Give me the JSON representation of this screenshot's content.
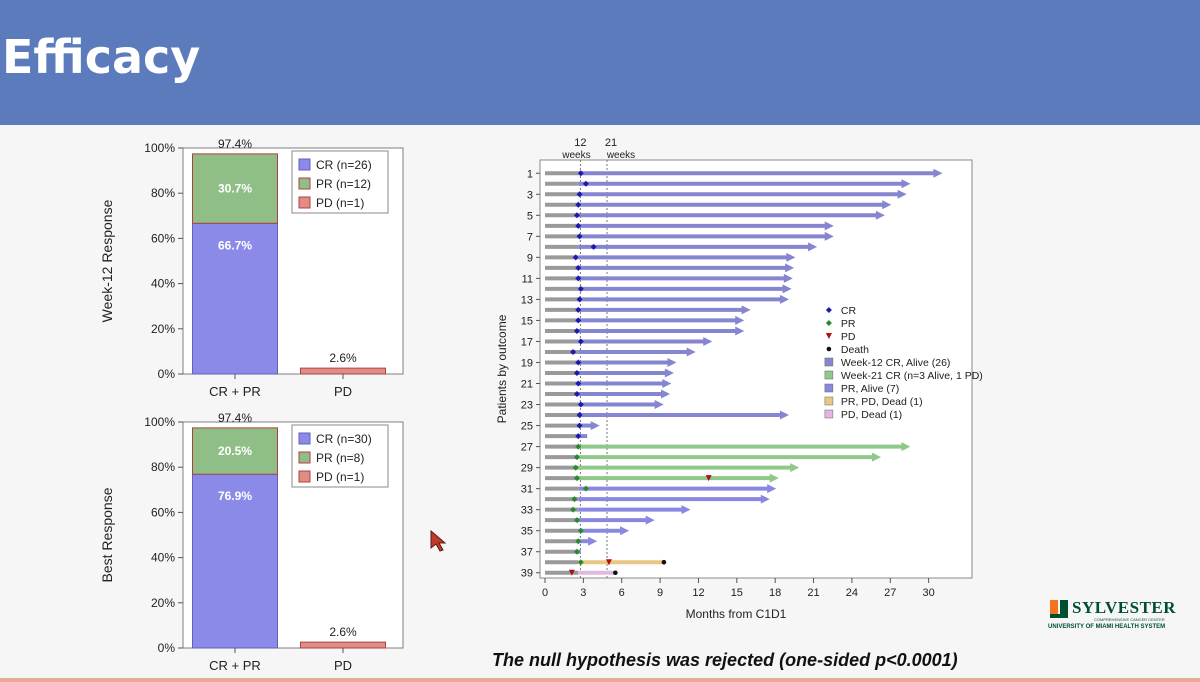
{
  "header": {
    "title": "Efficacy"
  },
  "footnote": "The null hypothesis was rejected (one-sided p<0.0001)",
  "logo": {
    "name": "SYLVESTER",
    "sub1": "COMPREHENSIVE CANCER CENTER",
    "sub2": "UNIVERSITY OF MIAMI HEALTH SYSTEM"
  },
  "colors": {
    "header": "#5c7bbd",
    "cr": "#8b8ae8",
    "pr": "#8fbf87",
    "pd": "#e08d88",
    "week12": "#8585d0",
    "week21": "#8ec98a",
    "pr_alive": "#8888e0",
    "pr_pd_dead": "#e8c684",
    "pd_dead": "#e0b8e0",
    "lead": "#9a9a9a"
  },
  "chart_data": [
    {
      "type": "bar",
      "ylabel": "Week-12 Response",
      "categories": [
        "CR + PR",
        "PD"
      ],
      "ylim": [
        0,
        100
      ],
      "yticks": [
        "0%",
        "20%",
        "40%",
        "60%",
        "80%",
        "100%"
      ],
      "series": [
        {
          "name": "CR (n=26)",
          "values": [
            66.7,
            0
          ]
        },
        {
          "name": "PR (n=12)",
          "values": [
            30.7,
            0
          ]
        },
        {
          "name": "PD (n=1)",
          "values": [
            0,
            2.6
          ]
        }
      ],
      "segment_labels": [
        "66.7%",
        "30.7%"
      ],
      "total_labels": [
        "97.4%",
        "2.6%"
      ],
      "legend_position": "top-right"
    },
    {
      "type": "bar",
      "ylabel": "Best Response",
      "categories": [
        "CR + PR",
        "PD"
      ],
      "ylim": [
        0,
        100
      ],
      "yticks": [
        "0%",
        "20%",
        "40%",
        "60%",
        "80%",
        "100%"
      ],
      "series": [
        {
          "name": "CR (n=30)",
          "values": [
            76.9,
            0
          ]
        },
        {
          "name": "PR (n=8)",
          "values": [
            20.5,
            0
          ]
        },
        {
          "name": "PD (n=1)",
          "values": [
            0,
            2.6
          ]
        }
      ],
      "segment_labels": [
        "76.9%",
        "20.5%"
      ],
      "total_labels": [
        "97.4%",
        "2.6%"
      ],
      "legend_position": "top-right"
    },
    {
      "type": "swimmer",
      "xlabel": "Months from C1D1",
      "ylabel": "Patients by outcome",
      "xlim": [
        0,
        33
      ],
      "xticks": [
        0,
        3,
        6,
        9,
        12,
        15,
        18,
        21,
        24,
        27,
        30
      ],
      "ytick_labels": [
        "1",
        "3",
        "5",
        "7",
        "9",
        "11",
        "13",
        "15",
        "17",
        "19",
        "21",
        "23",
        "25",
        "27",
        "29",
        "31",
        "33",
        "35",
        "37",
        "39"
      ],
      "reference_lines": [
        {
          "x": 2.77,
          "label": "12",
          "sub": "weeks"
        },
        {
          "x": 4.85,
          "label": "21",
          "sub": "weeks"
        }
      ],
      "legend": [
        {
          "label": "CR",
          "kind": "marker",
          "key": "CR"
        },
        {
          "label": "PR",
          "kind": "marker",
          "key": "PR"
        },
        {
          "label": "PD",
          "kind": "marker",
          "key": "PD"
        },
        {
          "label": "Death",
          "kind": "marker",
          "key": "Death"
        },
        {
          "label": "Week-12 CR, Alive (26)",
          "kind": "bar",
          "key": "week12"
        },
        {
          "label": "Week-21 CR (n=3 Alive, 1 PD)",
          "kind": "bar",
          "key": "week21"
        },
        {
          "label": "PR, Alive (7)",
          "kind": "bar",
          "key": "pr_alive"
        },
        {
          "label": "PR, PD, Dead (1)",
          "kind": "bar",
          "key": "pr_pd_dead"
        },
        {
          "label": "PD, Dead (1)",
          "kind": "bar",
          "key": "pd_dead"
        }
      ],
      "patients": [
        {
          "end": 31.0,
          "group": "week12",
          "events": [
            {
              "t": 2.8,
              "type": "CR"
            }
          ],
          "arrow": true
        },
        {
          "end": 28.5,
          "group": "week12",
          "events": [
            {
              "t": 3.2,
              "type": "CR"
            }
          ],
          "arrow": true
        },
        {
          "end": 28.2,
          "group": "week12",
          "events": [
            {
              "t": 2.7,
              "type": "CR"
            }
          ],
          "arrow": true
        },
        {
          "end": 27.0,
          "group": "week12",
          "events": [
            {
              "t": 2.6,
              "type": "CR"
            }
          ],
          "arrow": true
        },
        {
          "end": 26.5,
          "group": "week12",
          "events": [
            {
              "t": 2.5,
              "type": "CR"
            }
          ],
          "arrow": true
        },
        {
          "end": 22.5,
          "group": "week12",
          "events": [
            {
              "t": 2.6,
              "type": "CR"
            }
          ],
          "arrow": true
        },
        {
          "end": 22.5,
          "group": "week12",
          "events": [
            {
              "t": 2.7,
              "type": "CR"
            }
          ],
          "arrow": true
        },
        {
          "end": 21.2,
          "group": "week12",
          "events": [
            {
              "t": 3.8,
              "type": "CR"
            }
          ],
          "arrow": true
        },
        {
          "end": 19.5,
          "group": "week12",
          "events": [
            {
              "t": 2.4,
              "type": "CR"
            }
          ],
          "arrow": true
        },
        {
          "end": 19.4,
          "group": "week12",
          "events": [
            {
              "t": 2.6,
              "type": "CR"
            }
          ],
          "arrow": true
        },
        {
          "end": 19.3,
          "group": "week12",
          "events": [
            {
              "t": 2.6,
              "type": "CR"
            }
          ],
          "arrow": true
        },
        {
          "end": 19.2,
          "group": "week12",
          "events": [
            {
              "t": 2.8,
              "type": "CR"
            }
          ],
          "arrow": true
        },
        {
          "end": 19.0,
          "group": "week12",
          "events": [
            {
              "t": 2.7,
              "type": "CR"
            }
          ],
          "arrow": true
        },
        {
          "end": 16.0,
          "group": "week12",
          "events": [
            {
              "t": 2.6,
              "type": "CR"
            }
          ],
          "arrow": true
        },
        {
          "end": 15.5,
          "group": "week12",
          "events": [
            {
              "t": 2.6,
              "type": "CR"
            }
          ],
          "arrow": true
        },
        {
          "end": 15.5,
          "group": "week12",
          "events": [
            {
              "t": 2.5,
              "type": "CR"
            }
          ],
          "arrow": true
        },
        {
          "end": 13.0,
          "group": "week12",
          "events": [
            {
              "t": 2.8,
              "type": "CR"
            }
          ],
          "arrow": true
        },
        {
          "end": 11.7,
          "group": "week12",
          "events": [
            {
              "t": 2.2,
              "type": "CR"
            }
          ],
          "arrow": true
        },
        {
          "end": 10.2,
          "group": "week12",
          "events": [
            {
              "t": 2.6,
              "type": "CR"
            }
          ],
          "arrow": true
        },
        {
          "end": 10.0,
          "group": "week12",
          "events": [
            {
              "t": 2.5,
              "type": "CR"
            }
          ],
          "arrow": true
        },
        {
          "end": 9.8,
          "group": "week12",
          "events": [
            {
              "t": 2.6,
              "type": "CR"
            }
          ],
          "arrow": true
        },
        {
          "end": 9.7,
          "group": "week12",
          "events": [
            {
              "t": 2.5,
              "type": "CR"
            }
          ],
          "arrow": true
        },
        {
          "end": 9.2,
          "group": "week12",
          "events": [
            {
              "t": 2.8,
              "type": "CR"
            }
          ],
          "arrow": true
        },
        {
          "end": 19.0,
          "group": "week12",
          "events": [
            {
              "t": 2.7,
              "type": "CR"
            }
          ],
          "arrow": true
        },
        {
          "end": 4.2,
          "group": "week12",
          "events": [
            {
              "t": 2.7,
              "type": "CR"
            }
          ],
          "arrow": true
        },
        {
          "end": 3.3,
          "group": "week12",
          "events": [
            {
              "t": 2.6,
              "type": "CR"
            }
          ],
          "arrow": false
        },
        {
          "end": 28.5,
          "group": "week21",
          "events": [
            {
              "t": 2.6,
              "type": "PR"
            }
          ],
          "arrow": true
        },
        {
          "end": 26.2,
          "group": "week21",
          "events": [
            {
              "t": 2.5,
              "type": "PR"
            }
          ],
          "arrow": true
        },
        {
          "end": 19.8,
          "group": "week21",
          "events": [
            {
              "t": 2.4,
              "type": "PR"
            }
          ],
          "arrow": true
        },
        {
          "end": 18.2,
          "group": "week21",
          "events": [
            {
              "t": 2.5,
              "type": "PR"
            },
            {
              "t": 12.8,
              "type": "PD"
            }
          ],
          "arrow": true
        },
        {
          "end": 18.0,
          "group": "pr_alive",
          "events": [
            {
              "t": 3.2,
              "type": "PR"
            }
          ],
          "arrow": true
        },
        {
          "end": 17.5,
          "group": "pr_alive",
          "events": [
            {
              "t": 2.3,
              "type": "PR"
            }
          ],
          "arrow": true
        },
        {
          "end": 11.3,
          "group": "pr_alive",
          "events": [
            {
              "t": 2.2,
              "type": "PR"
            }
          ],
          "arrow": true
        },
        {
          "end": 8.5,
          "group": "pr_alive",
          "events": [
            {
              "t": 2.5,
              "type": "PR"
            }
          ],
          "arrow": true
        },
        {
          "end": 6.5,
          "group": "pr_alive",
          "events": [
            {
              "t": 2.8,
              "type": "PR"
            }
          ],
          "arrow": true
        },
        {
          "end": 4.0,
          "group": "pr_alive",
          "events": [
            {
              "t": 2.6,
              "type": "PR"
            }
          ],
          "arrow": true
        },
        {
          "end": 2.8,
          "group": "pr_alive",
          "events": [
            {
              "t": 2.5,
              "type": "PR"
            }
          ],
          "arrow": false
        },
        {
          "end": 9.3,
          "group": "pr_pd_dead",
          "events": [
            {
              "t": 2.8,
              "type": "PR"
            },
            {
              "t": 5.0,
              "type": "PD"
            },
            {
              "t": 9.3,
              "type": "Death"
            }
          ],
          "arrow": false
        },
        {
          "end": 5.5,
          "group": "pd_dead",
          "events": [
            {
              "t": 2.1,
              "type": "PD"
            },
            {
              "t": 5.5,
              "type": "Death"
            }
          ],
          "arrow": false
        }
      ]
    }
  ]
}
